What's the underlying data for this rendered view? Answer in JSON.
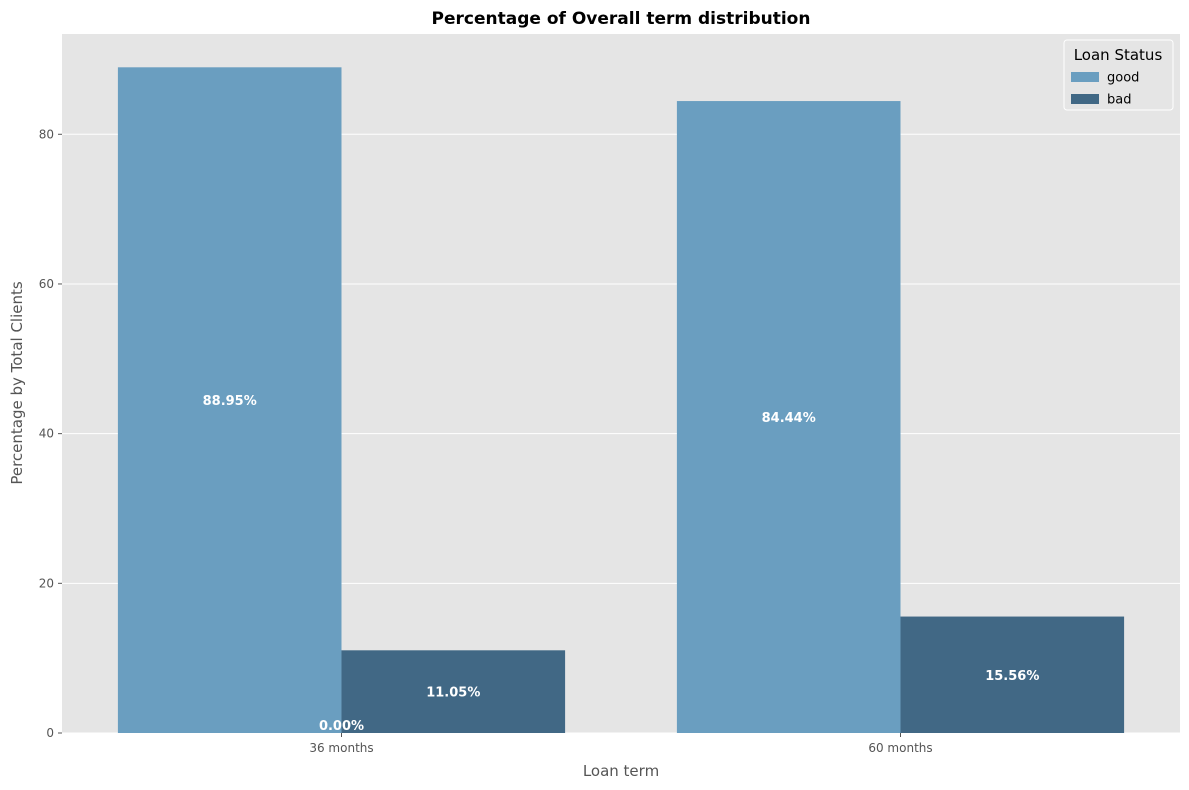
{
  "chart_data": {
    "type": "bar",
    "title": "Percentage of Overall term distribution",
    "xlabel": "Loan term",
    "ylabel": "Percentage by Total Clients",
    "categories": [
      "36 months",
      "60 months"
    ],
    "series": [
      {
        "name": "good",
        "values": [
          88.95,
          84.44
        ],
        "color": "#6a9ec0"
      },
      {
        "name": "bad",
        "values": [
          11.05,
          15.56
        ],
        "color": "#416885"
      }
    ],
    "bar_labels": [
      {
        "text": "88.95%",
        "series": 0,
        "category": 0
      },
      {
        "text": "84.44%",
        "series": 0,
        "category": 1
      },
      {
        "text": "11.05%",
        "series": 1,
        "category": 0
      },
      {
        "text": "15.56%",
        "series": 1,
        "category": 1
      },
      {
        "text": "0.00%",
        "series": null,
        "category": 0
      }
    ],
    "ylim": [
      0,
      93.4
    ],
    "yticks": [
      0,
      20,
      40,
      60,
      80
    ],
    "grid": true,
    "legend": {
      "title": "Loan Status",
      "placement": "top-right"
    },
    "background": "#e5e5e5"
  }
}
